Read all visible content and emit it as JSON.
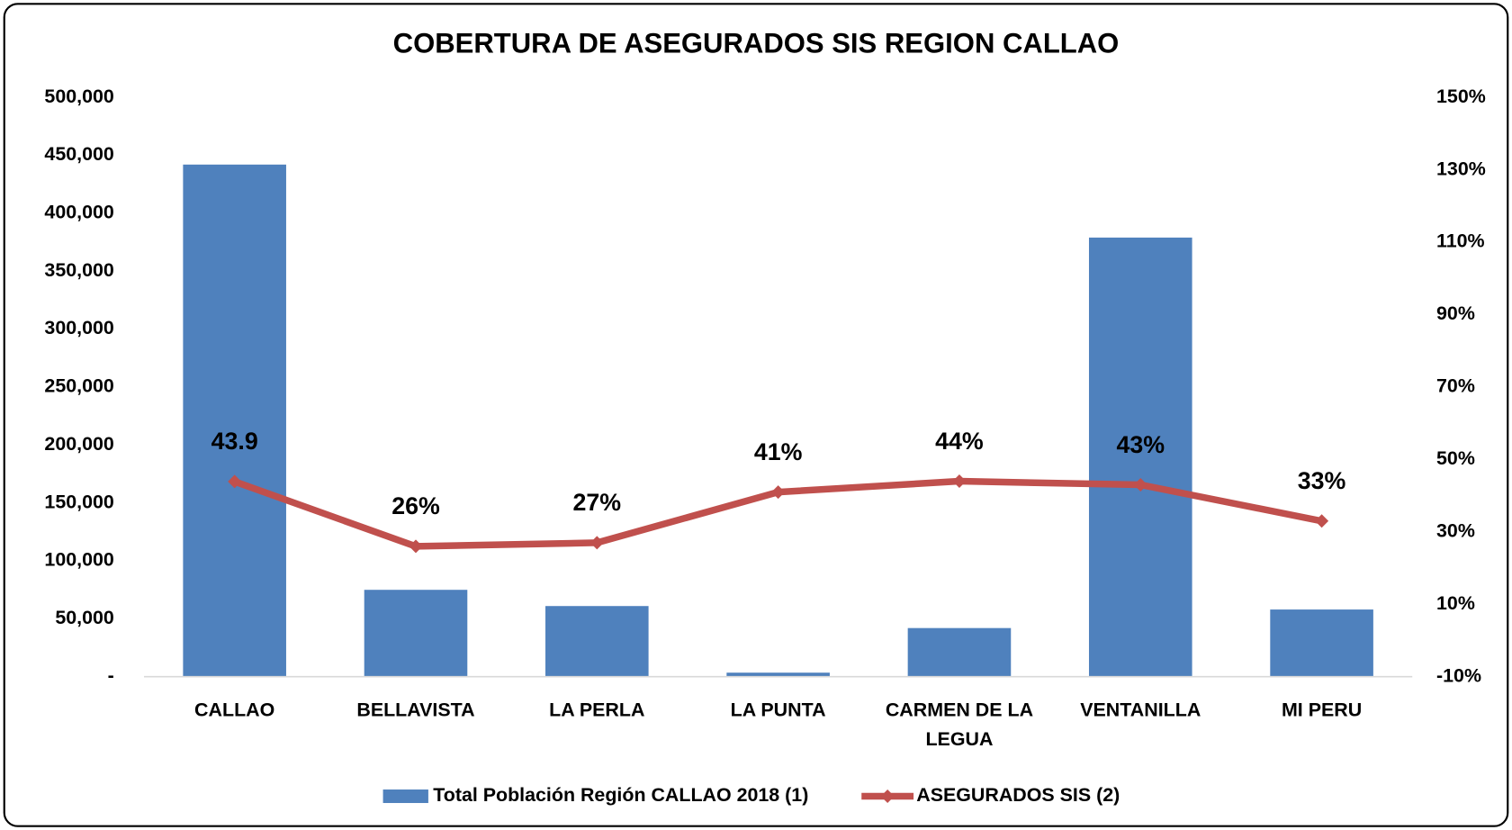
{
  "chart_data": {
    "type": "bar_line",
    "title": "COBERTURA DE ASEGURADOS SIS REGION CALLAO",
    "categories": [
      "CALLAO",
      "BELLAVISTA",
      "LA PERLA",
      "LA PUNTA",
      "CARMEN  DE LA LEGUA",
      "VENTANILLA",
      "MI PERU"
    ],
    "series": [
      {
        "name": "Total Población Región CALLAO 2018 (1)",
        "type": "bar",
        "color": "#4f81bd",
        "values": [
          442000,
          75000,
          61000,
          3500,
          42000,
          379000,
          58000
        ]
      },
      {
        "name": "ASEGURADOS SIS (2)",
        "type": "line",
        "axis": "y2",
        "color": "#c0504d",
        "values": [
          43.9,
          26,
          27,
          41,
          44,
          43,
          33
        ],
        "value_labels": [
          "43.9",
          "26%",
          "27%",
          "41%",
          "44%",
          "43%",
          "33%"
        ]
      }
    ],
    "ylim": [
      0,
      500000
    ],
    "yticks": [
      {
        "value": 0,
        "label": "-"
      },
      {
        "value": 50000,
        "label": "50,000"
      },
      {
        "value": 100000,
        "label": "100,000"
      },
      {
        "value": 150000,
        "label": "150,000"
      },
      {
        "value": 200000,
        "label": "200,000"
      },
      {
        "value": 250000,
        "label": "250,000"
      },
      {
        "value": 300000,
        "label": "300,000"
      },
      {
        "value": 350000,
        "label": "350,000"
      },
      {
        "value": 400000,
        "label": "400,000"
      },
      {
        "value": 450000,
        "label": "450,000"
      },
      {
        "value": 500000,
        "label": "500,000"
      }
    ],
    "y2lim": [
      -10,
      150
    ],
    "y2ticks": [
      {
        "value": -10,
        "label": "-10%"
      },
      {
        "value": 10,
        "label": "10%"
      },
      {
        "value": 30,
        "label": "30%"
      },
      {
        "value": 50,
        "label": "50%"
      },
      {
        "value": 70,
        "label": "70%"
      },
      {
        "value": 90,
        "label": "90%"
      },
      {
        "value": 110,
        "label": "110%"
      },
      {
        "value": 130,
        "label": "130%"
      },
      {
        "value": 150,
        "label": "150%"
      }
    ],
    "grid": false,
    "legend": "bottom"
  }
}
